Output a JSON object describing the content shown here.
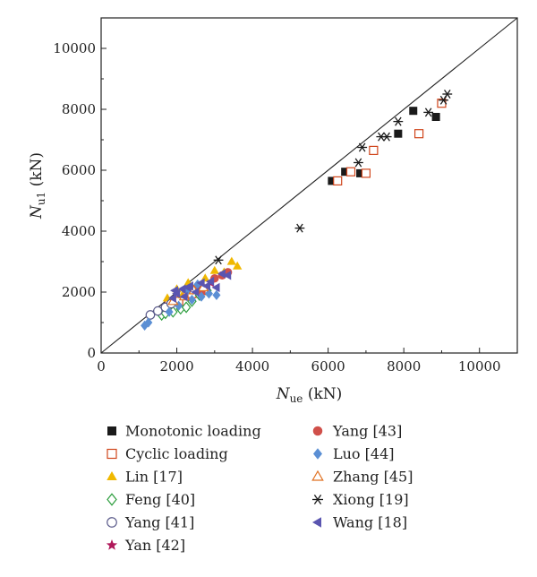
{
  "chart_data": {
    "type": "scatter",
    "xlabel": {
      "main": "N",
      "sub": "ue",
      "unit": " (kN)"
    },
    "ylabel": {
      "main": "N",
      "sub": "u1",
      "unit": " (kN)"
    },
    "xlim": [
      0,
      11000
    ],
    "ylim": [
      0,
      11000
    ],
    "xticks": [
      0,
      2000,
      4000,
      6000,
      8000,
      10000
    ],
    "yticks": [
      0,
      2000,
      4000,
      6000,
      8000,
      10000
    ],
    "grid": false,
    "reference_line": "y = x",
    "legend_position": "bottom",
    "series": [
      {
        "name": "Monotonic loading",
        "marker": "square-filled",
        "color": "#1a1a1a",
        "points": [
          [
            6100,
            5650
          ],
          [
            6450,
            5950
          ],
          [
            6850,
            5900
          ],
          [
            7850,
            7200
          ],
          [
            8250,
            7950
          ],
          [
            8850,
            7750
          ],
          [
            9000,
            8200
          ]
        ]
      },
      {
        "name": "Cyclic loading",
        "marker": "square-open",
        "color": "#d0451b",
        "points": [
          [
            6250,
            5650
          ],
          [
            6600,
            5950
          ],
          [
            7000,
            5900
          ],
          [
            7200,
            6650
          ],
          [
            8400,
            7200
          ],
          [
            9000,
            8200
          ],
          [
            1800,
            1600
          ],
          [
            2050,
            1700
          ],
          [
            2400,
            1950
          ],
          [
            2700,
            2050
          ]
        ]
      },
      {
        "name": "Lin [17]",
        "marker": "triangle-filled",
        "color": "#f0b800",
        "points": [
          [
            1750,
            1800
          ],
          [
            2000,
            2100
          ],
          [
            2300,
            2300
          ],
          [
            2550,
            2200
          ],
          [
            2750,
            2450
          ],
          [
            3000,
            2700
          ],
          [
            3250,
            2650
          ],
          [
            3450,
            3000
          ],
          [
            3600,
            2850
          ],
          [
            2150,
            1900
          ]
        ]
      },
      {
        "name": "Feng [40]",
        "marker": "diamond-open",
        "color": "#2e9e3f",
        "points": [
          [
            1600,
            1250
          ],
          [
            1700,
            1300
          ],
          [
            1900,
            1350
          ],
          [
            2100,
            1450
          ],
          [
            2250,
            1500
          ],
          [
            2400,
            1700
          ],
          [
            2600,
            1900
          ],
          [
            2800,
            2050
          ]
        ]
      },
      {
        "name": "Yang [41]",
        "marker": "circle-open",
        "color": "#5a5a8a",
        "points": [
          [
            1300,
            1250
          ],
          [
            1500,
            1380
          ],
          [
            1700,
            1500
          ],
          [
            1850,
            1620
          ]
        ]
      },
      {
        "name": "Yan [42]",
        "marker": "star",
        "color": "#b0185a",
        "points": [
          [
            2500,
            2050
          ],
          [
            2650,
            2150
          ],
          [
            2900,
            2300
          ]
        ]
      },
      {
        "name": "Yang [43]",
        "marker": "circle-filled",
        "color": "#d0504a",
        "points": [
          [
            2450,
            2100
          ],
          [
            2650,
            2000
          ],
          [
            3200,
            2550
          ],
          [
            3350,
            2650
          ],
          [
            3000,
            2450
          ]
        ]
      },
      {
        "name": "Luo [44]",
        "marker": "diamond-filled",
        "color": "#5b8fd4",
        "points": [
          [
            1150,
            900
          ],
          [
            1250,
            1000
          ],
          [
            1800,
            1350
          ],
          [
            2050,
            1550
          ],
          [
            2400,
            1750
          ],
          [
            2650,
            1850
          ],
          [
            2850,
            1950
          ],
          [
            3050,
            1900
          ],
          [
            2550,
            2250
          ],
          [
            2250,
            2000
          ]
        ]
      },
      {
        "name": "Zhang [45]",
        "marker": "triangle-open",
        "color": "#e07020",
        "points": [
          [
            1900,
            1700
          ],
          [
            2200,
            1850
          ],
          [
            2450,
            2050
          ],
          [
            2700,
            2150
          ]
        ]
      },
      {
        "name": "Xiong [19]",
        "marker": "asterisk",
        "color": "#1a1a1a",
        "points": [
          [
            3100,
            3050
          ],
          [
            5250,
            4100
          ],
          [
            6800,
            6250
          ],
          [
            6900,
            6750
          ],
          [
            7400,
            7100
          ],
          [
            7550,
            7100
          ],
          [
            7850,
            7600
          ],
          [
            8650,
            7900
          ],
          [
            9050,
            8300
          ],
          [
            9150,
            8500
          ]
        ]
      },
      {
        "name": "Wang [18]",
        "marker": "triangle-left-filled",
        "color": "#5a55b0",
        "points": [
          [
            1900,
            1800
          ],
          [
            2000,
            1950
          ],
          [
            2150,
            2100
          ],
          [
            2200,
            1850
          ],
          [
            2350,
            2200
          ],
          [
            2500,
            2000
          ],
          [
            2650,
            2300
          ],
          [
            2800,
            2200
          ],
          [
            2900,
            2350
          ],
          [
            3050,
            2150
          ],
          [
            3200,
            2600
          ],
          [
            3350,
            2550
          ],
          [
            2300,
            2150
          ],
          [
            1950,
            2050
          ]
        ]
      }
    ]
  }
}
